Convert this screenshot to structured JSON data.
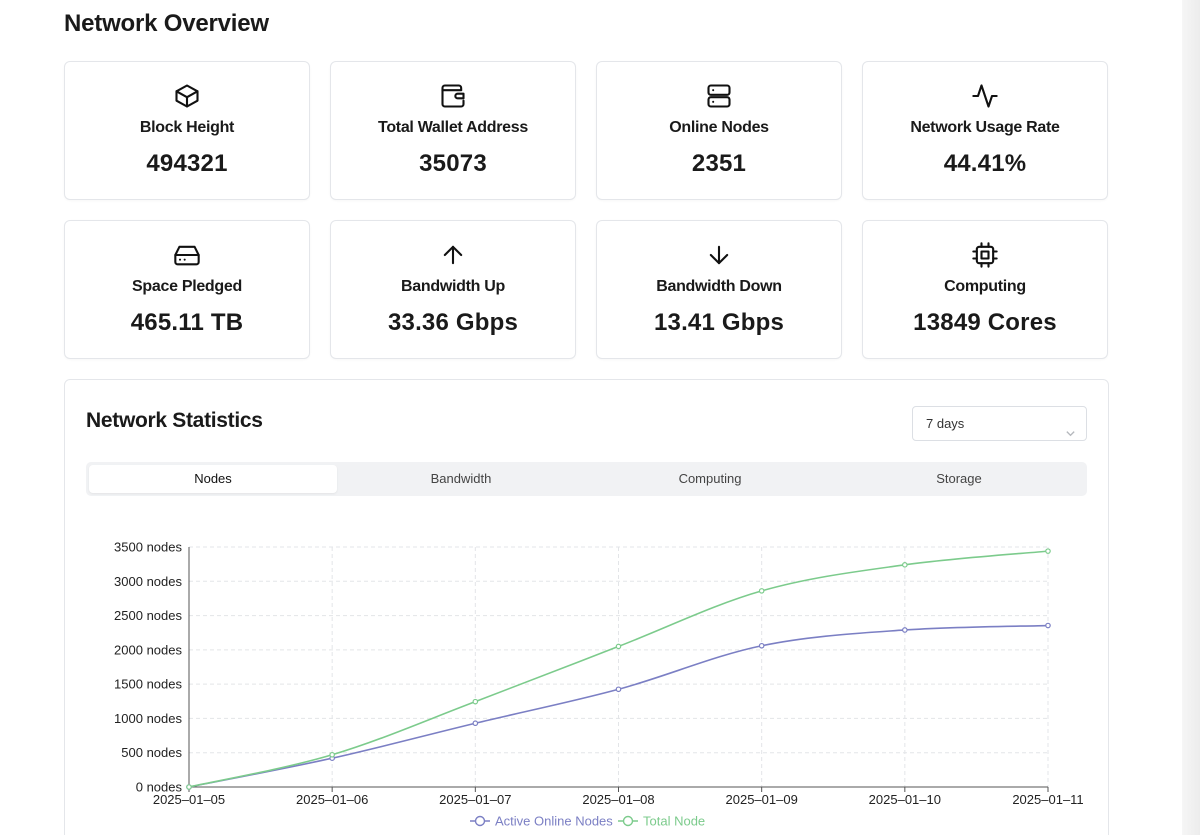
{
  "page": {
    "title": "Network Overview"
  },
  "cards": [
    {
      "icon": "box-icon",
      "label": "Block Height",
      "value": "494321"
    },
    {
      "icon": "wallet-icon",
      "label": "Total Wallet Address",
      "value": "35073"
    },
    {
      "icon": "server-icon",
      "label": "Online Nodes",
      "value": "2351"
    },
    {
      "icon": "activity-icon",
      "label": "Network Usage Rate",
      "value": "44.41%"
    },
    {
      "icon": "hard-drive-icon",
      "label": "Space Pledged",
      "value": "465.11 TB"
    },
    {
      "icon": "arrow-up-icon",
      "label": "Bandwidth Up",
      "value": "33.36 Gbps"
    },
    {
      "icon": "arrow-down-icon",
      "label": "Bandwidth Down",
      "value": "13.41 Gbps"
    },
    {
      "icon": "cpu-icon",
      "label": "Computing",
      "value": "13849 Cores"
    }
  ],
  "statistics": {
    "title": "Network Statistics",
    "range_select": {
      "value": "7 days"
    },
    "tabs": [
      {
        "label": "Nodes",
        "active": true
      },
      {
        "label": "Bandwidth",
        "active": false
      },
      {
        "label": "Computing",
        "active": false
      },
      {
        "label": "Storage",
        "active": false
      }
    ]
  },
  "chart_data": {
    "type": "line",
    "title": "",
    "xlabel": "",
    "ylabel": "",
    "x": [
      "2025–01–05",
      "2025–01–06",
      "2025–01–07",
      "2025–01–08",
      "2025–01–09",
      "2025–01–10",
      "2025–01–11"
    ],
    "y_ticks": [
      "0 nodes",
      "500 nodes",
      "1000 nodes",
      "1500 nodes",
      "2000 nodes",
      "2500 nodes",
      "3000 nodes",
      "3500 nodes"
    ],
    "ylim": [
      0,
      3500
    ],
    "grid": true,
    "legend_position": "bottom",
    "series": [
      {
        "name": "Active Online Nodes",
        "color": "#7b7fc4",
        "values": [
          0,
          420,
          930,
          1425,
          2060,
          2290,
          2355
        ]
      },
      {
        "name": "Total Node",
        "color": "#7ccb8c",
        "values": [
          0,
          470,
          1245,
          2050,
          2860,
          3240,
          3440
        ]
      }
    ]
  }
}
